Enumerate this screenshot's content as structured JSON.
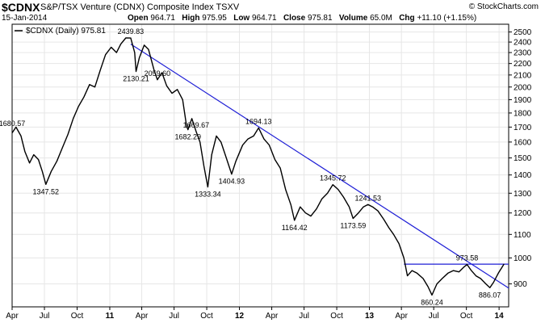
{
  "header": {
    "symbol": "$CDNX",
    "name": "S&P/TSX Venture (CDNX) Composite Index  TSXV",
    "date": "15-Jan-2014",
    "open_label": "Open",
    "open": "964.71",
    "high_label": "High",
    "high": "975.95",
    "low_label": "Low",
    "low": "964.71",
    "close_label": "Close",
    "close": "975.81",
    "volume_label": "Volume",
    "volume": "65.0M",
    "chg_label": "Chg",
    "chg": "+11.10 (+1.15%)",
    "copyright": "© StockCharts.com"
  },
  "legend": {
    "text": "$CDNX (Daily) 975.81"
  },
  "colors": {
    "price": "#000000",
    "trendline": "#1f1fd6",
    "grid": "#e6e6e6"
  },
  "chart_data": {
    "type": "line",
    "title": "",
    "y_scale": "log",
    "ylim": [
      820,
      2580
    ],
    "y_ticks": [
      900,
      1000,
      1100,
      1200,
      1300,
      1400,
      1500,
      1600,
      1700,
      1800,
      1900,
      2000,
      2100,
      2200,
      2300,
      2400,
      2500
    ],
    "x_range": [
      "2010-04-01",
      "2014-01-28"
    ],
    "x_ticks": [
      {
        "label": "Apr",
        "date": "2010-04-01"
      },
      {
        "label": "Jul",
        "date": "2010-07-01"
      },
      {
        "label": "Oct",
        "date": "2010-10-01"
      },
      {
        "label": "11",
        "date": "2011-01-01",
        "bold": true
      },
      {
        "label": "Apr",
        "date": "2011-04-01"
      },
      {
        "label": "Jul",
        "date": "2011-07-01"
      },
      {
        "label": "Oct",
        "date": "2011-10-01"
      },
      {
        "label": "12",
        "date": "2012-01-01",
        "bold": true
      },
      {
        "label": "Apr",
        "date": "2012-04-01"
      },
      {
        "label": "Jul",
        "date": "2012-07-01"
      },
      {
        "label": "Oct",
        "date": "2012-10-01"
      },
      {
        "label": "13",
        "date": "2013-01-01",
        "bold": true
      },
      {
        "label": "Apr",
        "date": "2013-04-01"
      },
      {
        "label": "Jul",
        "date": "2013-07-01"
      },
      {
        "label": "Oct",
        "date": "2013-10-01"
      },
      {
        "label": "14",
        "date": "2014-01-01",
        "bold": true
      }
    ],
    "series": [
      {
        "name": "$CDNX (Daily)",
        "points": [
          [
            "2010-04-01",
            1660
          ],
          [
            "2010-04-12",
            1700
          ],
          [
            "2010-04-26",
            1640
          ],
          [
            "2010-05-07",
            1540
          ],
          [
            "2010-05-20",
            1470
          ],
          [
            "2010-06-01",
            1520
          ],
          [
            "2010-06-14",
            1490
          ],
          [
            "2010-06-25",
            1420
          ],
          [
            "2010-07-05",
            1347.52
          ],
          [
            "2010-07-20",
            1420
          ],
          [
            "2010-08-05",
            1480
          ],
          [
            "2010-08-20",
            1560
          ],
          [
            "2010-09-05",
            1650
          ],
          [
            "2010-09-20",
            1760
          ],
          [
            "2010-10-05",
            1850
          ],
          [
            "2010-10-20",
            1920
          ],
          [
            "2010-11-05",
            2020
          ],
          [
            "2010-11-20",
            2000
          ],
          [
            "2010-12-05",
            2140
          ],
          [
            "2010-12-20",
            2280
          ],
          [
            "2011-01-05",
            2350
          ],
          [
            "2011-01-20",
            2300
          ],
          [
            "2011-02-01",
            2380
          ],
          [
            "2011-02-15",
            2440
          ],
          [
            "2011-03-01",
            2439.83
          ],
          [
            "2011-03-12",
            2300
          ],
          [
            "2011-03-16",
            2130.21
          ],
          [
            "2011-03-25",
            2250
          ],
          [
            "2011-04-08",
            2370
          ],
          [
            "2011-04-20",
            2330
          ],
          [
            "2011-05-05",
            2150
          ],
          [
            "2011-05-15",
            2059.6
          ],
          [
            "2011-05-28",
            2120
          ],
          [
            "2011-06-10",
            2010
          ],
          [
            "2011-06-25",
            1950
          ],
          [
            "2011-07-10",
            1980
          ],
          [
            "2011-07-25",
            1900
          ],
          [
            "2011-08-05",
            1710
          ],
          [
            "2011-08-09",
            1682.29
          ],
          [
            "2011-08-20",
            1760
          ],
          [
            "2011-09-01",
            1669.67
          ],
          [
            "2011-09-12",
            1600
          ],
          [
            "2011-09-23",
            1450
          ],
          [
            "2011-10-04",
            1333.34
          ],
          [
            "2011-10-15",
            1520
          ],
          [
            "2011-10-28",
            1640
          ],
          [
            "2011-11-10",
            1600
          ],
          [
            "2011-11-25",
            1500
          ],
          [
            "2011-12-10",
            1404.93
          ],
          [
            "2011-12-22",
            1480
          ],
          [
            "2012-01-10",
            1580
          ],
          [
            "2012-01-25",
            1620
          ],
          [
            "2012-02-10",
            1640
          ],
          [
            "2012-02-24",
            1694.13
          ],
          [
            "2012-03-10",
            1620
          ],
          [
            "2012-03-25",
            1580
          ],
          [
            "2012-04-10",
            1490
          ],
          [
            "2012-04-25",
            1440
          ],
          [
            "2012-05-10",
            1320
          ],
          [
            "2012-05-25",
            1240
          ],
          [
            "2012-06-04",
            1164.42
          ],
          [
            "2012-06-20",
            1230
          ],
          [
            "2012-07-05",
            1200
          ],
          [
            "2012-07-20",
            1185
          ],
          [
            "2012-08-05",
            1220
          ],
          [
            "2012-08-20",
            1270
          ],
          [
            "2012-09-05",
            1300
          ],
          [
            "2012-09-20",
            1345.72
          ],
          [
            "2012-10-05",
            1320
          ],
          [
            "2012-10-20",
            1280
          ],
          [
            "2012-11-05",
            1230
          ],
          [
            "2012-11-16",
            1173.59
          ],
          [
            "2012-12-01",
            1200
          ],
          [
            "2012-12-15",
            1230
          ],
          [
            "2012-12-28",
            1241.53
          ],
          [
            "2013-01-10",
            1230
          ],
          [
            "2013-01-25",
            1210
          ],
          [
            "2013-02-10",
            1170
          ],
          [
            "2013-02-25",
            1130
          ],
          [
            "2013-03-10",
            1100
          ],
          [
            "2013-03-25",
            1060
          ],
          [
            "2013-04-08",
            1000
          ],
          [
            "2013-04-18",
            930
          ],
          [
            "2013-05-01",
            950
          ],
          [
            "2013-05-15",
            940
          ],
          [
            "2013-06-01",
            920
          ],
          [
            "2013-06-15",
            890
          ],
          [
            "2013-06-26",
            860.24
          ],
          [
            "2013-07-10",
            900
          ],
          [
            "2013-07-25",
            920
          ],
          [
            "2013-08-10",
            940
          ],
          [
            "2013-08-25",
            950
          ],
          [
            "2013-09-10",
            945
          ],
          [
            "2013-09-25",
            965
          ],
          [
            "2013-10-03",
            973.58
          ],
          [
            "2013-10-15",
            950
          ],
          [
            "2013-10-28",
            930
          ],
          [
            "2013-11-10",
            920
          ],
          [
            "2013-11-25",
            900
          ],
          [
            "2013-12-06",
            886.07
          ],
          [
            "2013-12-16",
            905
          ],
          [
            "2013-12-30",
            940
          ],
          [
            "2014-01-08",
            960
          ],
          [
            "2014-01-15",
            975.81
          ]
        ]
      }
    ],
    "trendline": {
      "from": [
        "2011-03-01",
        2380
      ],
      "to": [
        "2014-01-28",
        885
      ]
    },
    "hline": {
      "value": 975,
      "from": "2013-04-08",
      "to": "2014-01-28"
    },
    "annotations": [
      {
        "text": "1680.57",
        "date": "2010-04-01",
        "value": 1680.57,
        "pos": "above"
      },
      {
        "text": "1347.52",
        "date": "2010-07-05",
        "value": 1347.52,
        "pos": "below"
      },
      {
        "text": "2439.83",
        "date": "2011-03-01",
        "value": 2439.83,
        "pos": "above"
      },
      {
        "text": "2130.21",
        "date": "2011-03-16",
        "value": 2130.21,
        "pos": "below"
      },
      {
        "text": "2059.60",
        "date": "2011-05-15",
        "value": 2059.6,
        "pos": "above"
      },
      {
        "text": "1682.29",
        "date": "2011-08-09",
        "value": 1682.29,
        "pos": "below"
      },
      {
        "text": "1669.67",
        "date": "2011-09-01",
        "value": 1669.67,
        "pos": "above"
      },
      {
        "text": "1333.34",
        "date": "2011-10-04",
        "value": 1333.34,
        "pos": "below"
      },
      {
        "text": "1404.93",
        "date": "2011-12-10",
        "value": 1404.93,
        "pos": "below"
      },
      {
        "text": "1694.13",
        "date": "2012-02-24",
        "value": 1694.13,
        "pos": "above"
      },
      {
        "text": "1164.42",
        "date": "2012-06-04",
        "value": 1164.42,
        "pos": "below"
      },
      {
        "text": "1345.72",
        "date": "2012-09-20",
        "value": 1345.72,
        "pos": "above"
      },
      {
        "text": "1173.59",
        "date": "2012-11-16",
        "value": 1173.59,
        "pos": "below"
      },
      {
        "text": "1241.53",
        "date": "2012-12-28",
        "value": 1241.53,
        "pos": "above"
      },
      {
        "text": "973.58",
        "date": "2013-10-03",
        "value": 973.58,
        "pos": "above"
      },
      {
        "text": "860.24",
        "date": "2013-06-26",
        "value": 860.24,
        "pos": "below"
      },
      {
        "text": "886.07",
        "date": "2013-12-06",
        "value": 886.07,
        "pos": "below"
      }
    ],
    "grid": true,
    "legend_position": "top-left"
  }
}
